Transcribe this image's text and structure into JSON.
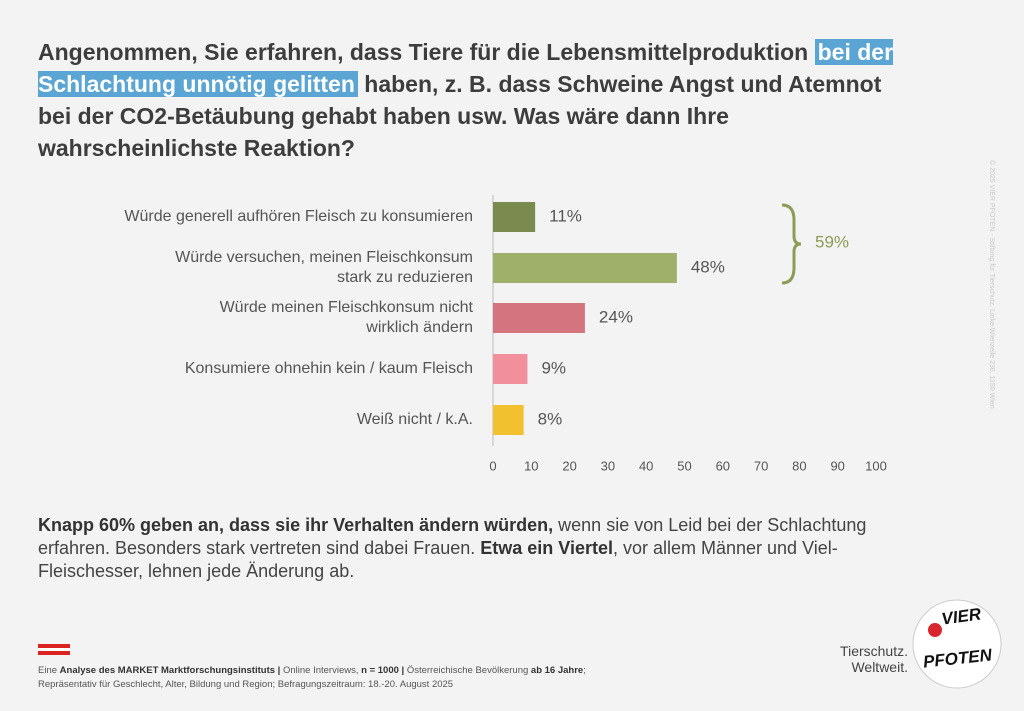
{
  "header": {
    "title_before": "Angenommen, Sie erfahren, dass Tiere für die Lebensmittelproduktion ",
    "title_highlight": "bei der Schlachtung unnötig gelitten",
    "title_after": " haben, z. B. dass Schweine Angst und Atemnot bei der CO2-Betäubung gehabt haben usw. Was wäre dann Ihre wahrscheinlichste Reaktion?"
  },
  "chart_data": {
    "type": "bar",
    "orientation": "horizontal",
    "categories": [
      "Würde generell aufhören Fleisch zu konsumieren",
      "Würde versuchen, meinen Fleischkonsum\nstark zu reduzieren",
      "Würde meinen Fleischkonsum nicht\nwirklich ändern",
      "Konsumiere ohnehin kein / kaum Fleisch",
      "Weiß nicht / k.A."
    ],
    "values": [
      11,
      48,
      24,
      9,
      8
    ],
    "value_labels": [
      "11%",
      "48%",
      "24%",
      "9%",
      "8%"
    ],
    "colors": [
      "#7b8a4f",
      "#9fb06a",
      "#d4747f",
      "#f28f9c",
      "#f2c12f"
    ],
    "xlim": [
      0,
      100
    ],
    "xticks": [
      0,
      10,
      20,
      30,
      40,
      50,
      60,
      70,
      80,
      90,
      100
    ],
    "bracket_label": "59%",
    "bracket_color": "#8c9c56"
  },
  "summary": [
    "Knapp 60% geben an, dass sie ihr Verhalten ändern würden,",
    " wenn sie von Leid bei der Schlachtung erfahren. Besonders stark vertreten sind dabei Frauen. ",
    "Etwa ein Viertel",
    ", vor allem Männer und Viel-Fleischesser, lehnen jede Änderung ab."
  ],
  "footer": {
    "line1": [
      "Eine ",
      "Analyse des MARKET Marktforschungsinstituts |",
      " Online Interviews, ",
      "n = 1000 |",
      " Österreichische Bevölkerung ",
      "ab 16 Jahre",
      ";"
    ],
    "line2": "Repräsentativ für Geschlecht, Alter, Bildung und Region; Befragungszeitraum: 18.-20. August 2025"
  },
  "copyright": "© 2025 VIER PFOTEN - Stiftung für Tierschutz, Linke Wienzeile 236, 1150 Wien",
  "logo": {
    "top": "VIER",
    "bottom": "PFOTEN",
    "tagline": "Tierschutz.\nWeltweit."
  }
}
